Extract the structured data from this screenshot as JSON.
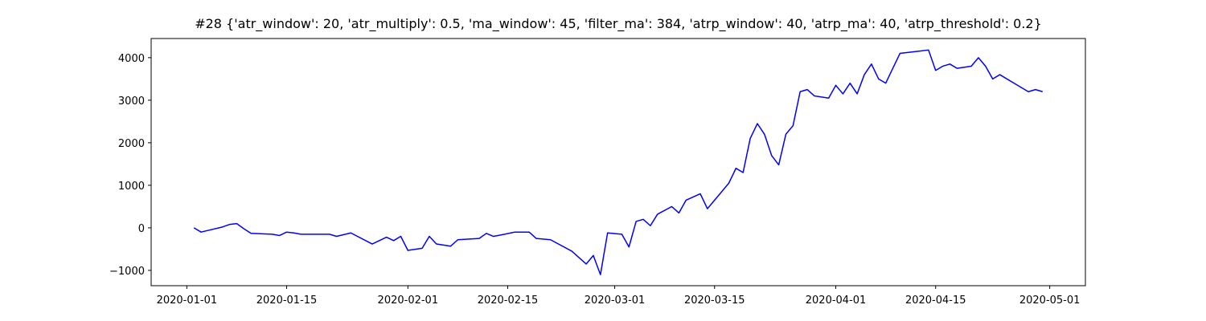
{
  "chart_data": {
    "type": "line",
    "title": "#28 {'atr_window': 20, 'atr_multiply': 0.5, 'ma_window': 45, 'filter_ma': 384, 'atrp_window': 40, 'atrp_ma': 40, 'atrp_threshold': 0.2}",
    "x": [
      "2020-01-02",
      "2020-01-03",
      "2020-01-04",
      "2020-01-06",
      "2020-01-07",
      "2020-01-08",
      "2020-01-09",
      "2020-01-10",
      "2020-01-13",
      "2020-01-14",
      "2020-01-15",
      "2020-01-16",
      "2020-01-17",
      "2020-01-21",
      "2020-01-22",
      "2020-01-24",
      "2020-01-27",
      "2020-01-29",
      "2020-01-30",
      "2020-01-31",
      "2020-02-01",
      "2020-02-03",
      "2020-02-04",
      "2020-02-05",
      "2020-02-07",
      "2020-02-08",
      "2020-02-11",
      "2020-02-12",
      "2020-02-13",
      "2020-02-14",
      "2020-02-16",
      "2020-02-18",
      "2020-02-19",
      "2020-02-21",
      "2020-02-24",
      "2020-02-25",
      "2020-02-26",
      "2020-02-27",
      "2020-02-28",
      "2020-02-29",
      "2020-03-02",
      "2020-03-03",
      "2020-03-04",
      "2020-03-05",
      "2020-03-06",
      "2020-03-07",
      "2020-03-09",
      "2020-03-10",
      "2020-03-11",
      "2020-03-13",
      "2020-03-14",
      "2020-03-17",
      "2020-03-18",
      "2020-03-19",
      "2020-03-20",
      "2020-03-21",
      "2020-03-22",
      "2020-03-23",
      "2020-03-24",
      "2020-03-25",
      "2020-03-26",
      "2020-03-27",
      "2020-03-28",
      "2020-03-29",
      "2020-03-31",
      "2020-04-01",
      "2020-04-02",
      "2020-04-03",
      "2020-04-04",
      "2020-04-05",
      "2020-04-06",
      "2020-04-07",
      "2020-04-08",
      "2020-04-09",
      "2020-04-10",
      "2020-04-14",
      "2020-04-15",
      "2020-04-16",
      "2020-04-17",
      "2020-04-18",
      "2020-04-20",
      "2020-04-21",
      "2020-04-22",
      "2020-04-23",
      "2020-04-24",
      "2020-04-27",
      "2020-04-28",
      "2020-04-29",
      "2020-04-30"
    ],
    "series": [
      {
        "color": "#0000ff",
        "values": [
          0,
          -100,
          -60,
          20,
          80,
          100,
          -20,
          -130,
          -150,
          -180,
          -100,
          -120,
          -150,
          -150,
          -200,
          -120,
          -380,
          -220,
          -300,
          -200,
          -530,
          -480,
          -200,
          -380,
          -430,
          -280,
          -250,
          -130,
          -200,
          -170,
          -100,
          -100,
          -250,
          -280,
          -550,
          -700,
          -850,
          -650,
          -1100,
          -120,
          -150,
          -450,
          150,
          200,
          50,
          320,
          500,
          350,
          650,
          800,
          450,
          1050,
          1400,
          1300,
          2100,
          2450,
          2200,
          1700,
          1480,
          2200,
          2400,
          3200,
          3250,
          3100,
          3050,
          3350,
          3150,
          3400,
          3150,
          3600,
          3850,
          3500,
          3400,
          3750,
          4100,
          4180,
          3700,
          3800,
          3850,
          3750,
          3800,
          4000,
          3800,
          3500,
          3600,
          3300,
          3200,
          3250,
          3200
        ]
      }
    ],
    "xlim": [
      "2019-12-27",
      "2020-05-06"
    ],
    "xticks": [
      "2020-01-01",
      "2020-01-15",
      "2020-02-01",
      "2020-02-15",
      "2020-03-01",
      "2020-03-15",
      "2020-04-01",
      "2020-04-15",
      "2020-05-01"
    ],
    "ylim": [
      -1360,
      4450
    ],
    "yticks": [
      {
        "value": -1000,
        "label": "−1000"
      },
      0,
      1000,
      2000,
      3000,
      4000
    ]
  }
}
